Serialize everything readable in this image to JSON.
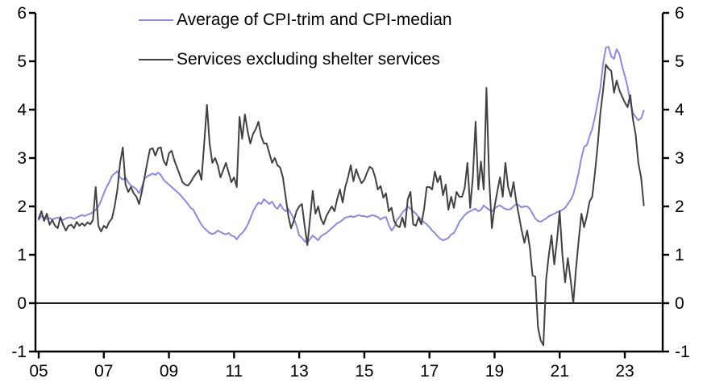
{
  "chart_data": {
    "type": "line",
    "title": "",
    "xlabel": "",
    "ylabel": "",
    "ylim": [
      -1,
      6
    ],
    "x_start_year": 2005,
    "points_per_year": 12,
    "grid": false,
    "zero_line": true,
    "legend_position": "top-left-inside",
    "yticks": [
      6,
      5,
      4,
      3,
      2,
      1,
      0,
      -1
    ],
    "ytick_labels": [
      "6",
      "5",
      "4",
      "3",
      "2",
      "1",
      "0",
      "-1"
    ],
    "xticks": [
      2005,
      2007,
      2009,
      2011,
      2013,
      2015,
      2017,
      2019,
      2021,
      2023
    ],
    "xtick_labels": [
      "05",
      "07",
      "09",
      "11",
      "13",
      "15",
      "17",
      "19",
      "21",
      "23"
    ],
    "series": [
      {
        "key": "cpi-trim-median-average",
        "name": "Average of CPI-trim and CPI-median",
        "color": "#8a8ae6",
        "values": [
          1.72,
          1.8,
          1.77,
          1.74,
          1.76,
          1.73,
          1.75,
          1.77,
          1.74,
          1.72,
          1.75,
          1.77,
          1.77,
          1.74,
          1.77,
          1.8,
          1.82,
          1.8,
          1.83,
          1.85,
          1.88,
          1.93,
          2.0,
          2.12,
          2.27,
          2.4,
          2.5,
          2.63,
          2.68,
          2.73,
          2.6,
          2.55,
          2.6,
          2.5,
          2.43,
          2.4,
          2.35,
          2.27,
          2.4,
          2.57,
          2.62,
          2.65,
          2.68,
          2.65,
          2.7,
          2.65,
          2.55,
          2.5,
          2.45,
          2.4,
          2.35,
          2.3,
          2.25,
          2.18,
          2.12,
          2.05,
          1.97,
          1.93,
          1.82,
          1.72,
          1.62,
          1.55,
          1.5,
          1.45,
          1.43,
          1.45,
          1.5,
          1.47,
          1.44,
          1.42,
          1.45,
          1.4,
          1.38,
          1.32,
          1.4,
          1.45,
          1.52,
          1.62,
          1.75,
          1.9,
          2.0,
          2.08,
          2.05,
          2.15,
          2.1,
          2.05,
          2.1,
          2.0,
          1.95,
          2.05,
          1.95,
          1.9,
          1.95,
          1.85,
          1.75,
          1.6,
          1.4,
          1.35,
          1.28,
          1.25,
          1.32,
          1.4,
          1.35,
          1.3,
          1.38,
          1.42,
          1.45,
          1.5,
          1.55,
          1.6,
          1.65,
          1.68,
          1.72,
          1.77,
          1.78,
          1.8,
          1.78,
          1.8,
          1.82,
          1.8,
          1.8,
          1.78,
          1.8,
          1.82,
          1.8,
          1.78,
          1.73,
          1.77,
          1.78,
          1.62,
          1.5,
          1.57,
          1.72,
          1.78,
          1.87,
          1.93,
          2.0,
          1.95,
          1.9,
          1.85,
          1.78,
          1.73,
          1.67,
          1.63,
          1.57,
          1.5,
          1.45,
          1.38,
          1.33,
          1.3,
          1.32,
          1.35,
          1.42,
          1.45,
          1.55,
          1.68,
          1.75,
          1.82,
          1.87,
          1.9,
          1.93,
          1.95,
          1.9,
          1.93,
          2.02,
          1.97,
          1.93,
          1.9,
          1.95,
          2.0,
          2.02,
          1.98,
          1.95,
          1.93,
          1.95,
          2.0,
          2.05,
          2.02,
          1.98,
          2.0,
          2.0,
          1.95,
          1.85,
          1.75,
          1.7,
          1.68,
          1.72,
          1.75,
          1.8,
          1.82,
          1.85,
          1.88,
          1.9,
          1.93,
          1.97,
          2.05,
          2.13,
          2.25,
          2.45,
          2.7,
          3.0,
          3.23,
          3.27,
          3.45,
          3.6,
          3.85,
          4.15,
          4.45,
          4.95,
          5.28,
          5.3,
          5.1,
          5.05,
          5.25,
          5.15,
          4.9,
          4.7,
          4.48,
          4.15,
          3.93,
          3.85,
          3.78,
          3.82,
          3.98
        ]
      },
      {
        "key": "services-excluding-shelter",
        "name": "Services excluding shelter services",
        "color": "#414141",
        "values": [
          1.75,
          1.9,
          1.7,
          1.85,
          1.62,
          1.72,
          1.6,
          1.55,
          1.78,
          1.62,
          1.5,
          1.6,
          1.62,
          1.55,
          1.68,
          1.6,
          1.65,
          1.6,
          1.67,
          1.63,
          1.72,
          2.4,
          1.6,
          1.48,
          1.6,
          1.55,
          1.68,
          1.75,
          2.0,
          2.35,
          2.9,
          3.22,
          2.45,
          2.3,
          2.4,
          2.27,
          2.2,
          2.05,
          2.3,
          2.6,
          2.9,
          3.18,
          3.2,
          3.05,
          3.2,
          3.22,
          2.95,
          2.85,
          3.1,
          3.15,
          2.95,
          2.8,
          2.65,
          2.5,
          2.45,
          2.43,
          2.5,
          2.6,
          2.68,
          2.75,
          2.55,
          3.3,
          4.1,
          3.3,
          2.9,
          3.0,
          2.85,
          2.6,
          2.75,
          2.9,
          2.7,
          2.5,
          2.6,
          2.4,
          3.85,
          3.4,
          3.9,
          3.55,
          3.3,
          3.5,
          3.6,
          3.75,
          3.45,
          3.3,
          3.3,
          3.1,
          2.9,
          3.0,
          2.85,
          2.8,
          2.6,
          2.2,
          1.8,
          1.55,
          1.7,
          1.9,
          2.0,
          2.05,
          1.6,
          1.2,
          1.75,
          2.32,
          1.85,
          2.0,
          1.75,
          1.63,
          1.8,
          1.9,
          2.0,
          1.9,
          2.15,
          2.35,
          2.08,
          2.4,
          2.6,
          2.85,
          2.52,
          2.77,
          2.6,
          2.48,
          2.55,
          2.7,
          2.82,
          2.78,
          2.6,
          2.35,
          2.42,
          2.18,
          2.27,
          1.9,
          1.97,
          1.7,
          1.6,
          1.57,
          1.77,
          1.57,
          2.15,
          2.3,
          1.63,
          1.6,
          1.77,
          1.63,
          1.93,
          2.4,
          2.4,
          2.35,
          2.72,
          2.5,
          2.63,
          2.23,
          2.45,
          1.93,
          2.2,
          1.97,
          2.3,
          2.2,
          2.2,
          2.38,
          2.9,
          1.97,
          2.6,
          3.75,
          2.35,
          2.93,
          2.35,
          4.45,
          2.6,
          1.55,
          2.0,
          2.3,
          2.6,
          2.2,
          2.9,
          2.4,
          2.2,
          2.5,
          2.1,
          1.8,
          1.5,
          1.25,
          1.5,
          1.15,
          0.57,
          0.55,
          -0.5,
          -0.77,
          -0.87,
          0.48,
          1.0,
          1.4,
          0.8,
          1.3,
          1.9,
          1.0,
          0.43,
          0.93,
          0.5,
          0.0,
          0.7,
          1.3,
          1.85,
          1.57,
          1.8,
          2.1,
          2.2,
          2.7,
          3.27,
          3.93,
          4.4,
          4.93,
          4.85,
          4.8,
          4.35,
          4.6,
          4.4,
          4.27,
          4.15,
          4.05,
          4.3,
          3.8,
          3.48,
          2.9,
          2.6,
          2.02
        ]
      }
    ]
  }
}
